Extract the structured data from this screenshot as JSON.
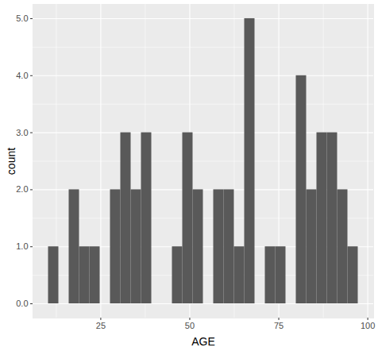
{
  "chart_data": {
    "type": "histogram",
    "x_label": "AGE",
    "y_label": "count",
    "bins": [
      10.3,
      13.2,
      16.1,
      19.0,
      21.9,
      24.8,
      27.7,
      30.6,
      33.5,
      36.4,
      39.3,
      42.2,
      45.1,
      48.0,
      50.9,
      53.8,
      56.7,
      59.6,
      62.5,
      65.4,
      68.3,
      71.2,
      74.1,
      77.0,
      79.9,
      82.8,
      85.7,
      88.6,
      91.5,
      94.4,
      97.3
    ],
    "values": [
      1,
      0,
      2,
      1,
      1,
      0,
      2,
      3,
      2,
      3,
      0,
      0,
      1,
      3,
      2,
      0,
      2,
      2,
      1,
      5,
      0,
      1,
      1,
      0,
      4,
      2,
      3,
      3,
      2,
      1
    ],
    "color": "#595959",
    "xlim": [
      5.95,
      101.65
    ],
    "xticks": [
      25,
      50,
      75,
      100
    ],
    "ylim": [
      -0.25,
      5.25
    ],
    "yticks": [
      0,
      1,
      2,
      3,
      4,
      5
    ],
    "grid": true
  }
}
